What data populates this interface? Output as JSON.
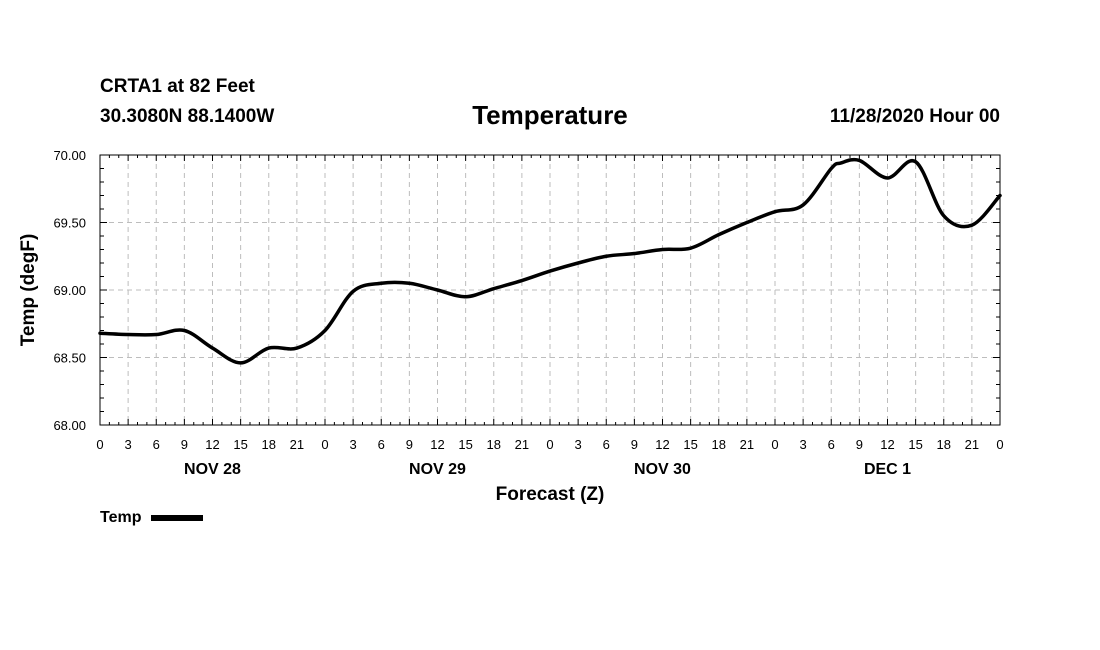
{
  "header": {
    "station": "CRTA1 at 82 Feet",
    "coords": "30.3080N 88.1400W",
    "title": "Temperature",
    "issued": "11/28/2020 Hour 00"
  },
  "chart_data": {
    "type": "line",
    "title": "Temperature",
    "xlabel": "Forecast (Z)",
    "ylabel": "Temp (degF)",
    "ylim": [
      68.0,
      70.0
    ],
    "yticks": [
      "68.00",
      "68.50",
      "69.00",
      "69.50",
      "70.00"
    ],
    "xlim_hours": [
      0,
      96
    ],
    "x_tick_labels": [
      "0",
      "3",
      "6",
      "9",
      "12",
      "15",
      "18",
      "21",
      "0",
      "3",
      "6",
      "9",
      "12",
      "15",
      "18",
      "21",
      "0",
      "3",
      "6",
      "9",
      "12",
      "15",
      "18",
      "21",
      "0",
      "3",
      "6",
      "9",
      "12",
      "15",
      "18",
      "21",
      "0"
    ],
    "day_labels": [
      {
        "label": "NOV 28",
        "hour": 12
      },
      {
        "label": "NOV 29",
        "hour": 36
      },
      {
        "label": "NOV 30",
        "hour": 60
      },
      {
        "label": "DEC 1",
        "hour": 84
      }
    ],
    "grid": true,
    "legend": {
      "position": "bottom-left",
      "entries": [
        "Temp"
      ]
    },
    "series": [
      {
        "name": "Temp",
        "color": "#000000",
        "x": [
          0,
          3,
          6,
          9,
          12,
          15,
          18,
          21,
          24,
          27,
          30,
          33,
          36,
          39,
          42,
          45,
          48,
          51,
          54,
          57,
          60,
          63,
          66,
          69,
          72,
          75,
          78,
          79,
          81,
          84,
          87,
          90,
          93,
          96
        ],
        "values": [
          68.68,
          68.67,
          68.67,
          68.7,
          68.57,
          68.46,
          68.57,
          68.57,
          68.7,
          68.99,
          69.05,
          69.05,
          69.0,
          68.95,
          69.01,
          69.07,
          69.14,
          69.2,
          69.25,
          69.27,
          69.3,
          69.31,
          69.41,
          69.5,
          69.58,
          69.63,
          69.9,
          69.94,
          69.96,
          69.83,
          69.95,
          69.55,
          69.48,
          69.7
        ]
      }
    ]
  }
}
